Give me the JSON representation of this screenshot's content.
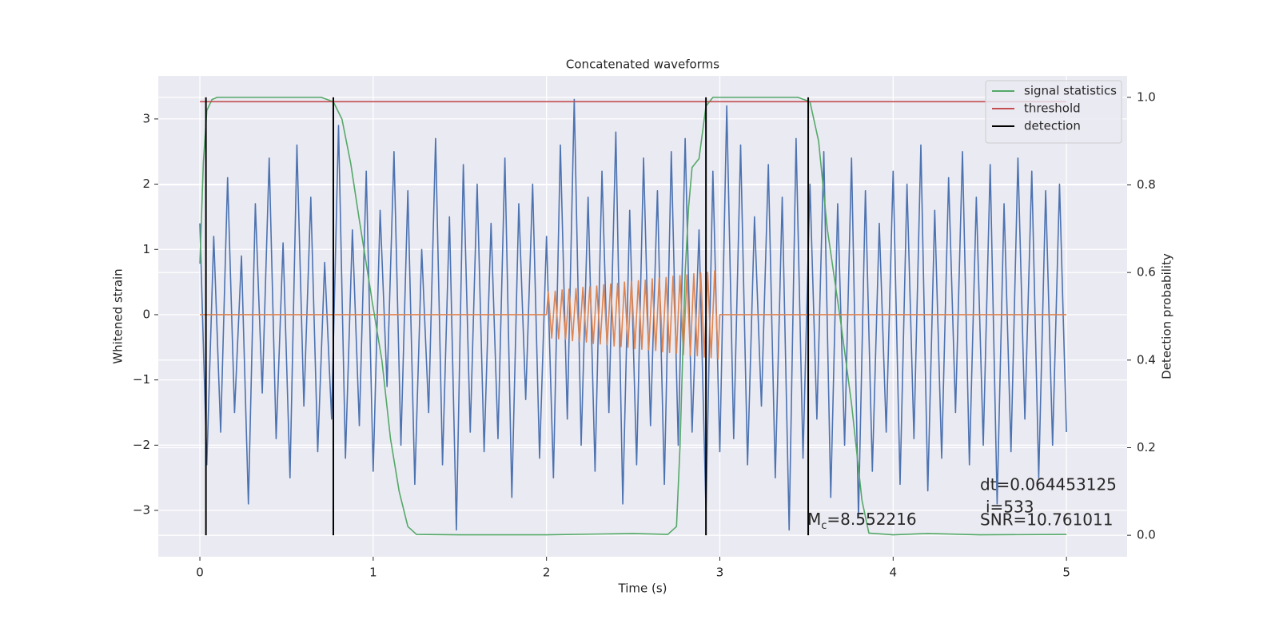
{
  "chart_data": {
    "type": "line",
    "title": "Concatenated waveforms",
    "xlabel": "Time (s)",
    "ylabel": "Whitened strain",
    "y2label": "Detection probability",
    "xlim": [
      -0.24,
      5.35
    ],
    "ylim": [
      -3.71,
      3.66
    ],
    "y2lim": [
      -0.049,
      1.049
    ],
    "xticks": [
      0,
      1,
      2,
      3,
      4,
      5
    ],
    "yticks": [
      {
        "value": -3,
        "label": "−3"
      },
      {
        "value": -2,
        "label": "−2"
      },
      {
        "value": -1,
        "label": "−1"
      },
      0,
      1,
      2,
      3
    ],
    "y2ticks": [
      {
        "value": 0,
        "label": "0.0"
      },
      0.2,
      0.4,
      0.6,
      0.8,
      {
        "value": 1,
        "label": "1.0"
      }
    ],
    "grid": true,
    "legend": "upper right",
    "series": [
      {
        "color": "#4c72b0",
        "axis": "y",
        "x": [
          0,
          0.04,
          0.08,
          0.12,
          0.16,
          0.2,
          0.24,
          0.28,
          0.32,
          0.36,
          0.4,
          0.44,
          0.48,
          0.52,
          0.56,
          0.6,
          0.64,
          0.68,
          0.72,
          0.76,
          0.8,
          0.84,
          0.88,
          0.92,
          0.96,
          1.0,
          1.04,
          1.08,
          1.12,
          1.16,
          1.2,
          1.24,
          1.28,
          1.32,
          1.36,
          1.4,
          1.44,
          1.48,
          1.52,
          1.56,
          1.6,
          1.64,
          1.68,
          1.72,
          1.76,
          1.8,
          1.84,
          1.88,
          1.92,
          1.96,
          2.0,
          2.04,
          2.08,
          2.12,
          2.16,
          2.2,
          2.24,
          2.28,
          2.32,
          2.36,
          2.4,
          2.44,
          2.48,
          2.52,
          2.56,
          2.6,
          2.64,
          2.68,
          2.72,
          2.76,
          2.8,
          2.84,
          2.88,
          2.92,
          2.96,
          3.0,
          3.04,
          3.08,
          3.12,
          3.16,
          3.2,
          3.24,
          3.28,
          3.32,
          3.36,
          3.4,
          3.44,
          3.48,
          3.52,
          3.56,
          3.6,
          3.64,
          3.68,
          3.72,
          3.76,
          3.8,
          3.84,
          3.88,
          3.92,
          3.96,
          4.0,
          4.04,
          4.08,
          4.12,
          4.16,
          4.2,
          4.24,
          4.28,
          4.32,
          4.36,
          4.4,
          4.44,
          4.48,
          4.52,
          4.56,
          4.6,
          4.64,
          4.68,
          4.72,
          4.76,
          4.8,
          4.84,
          4.88,
          4.92,
          4.96,
          5.0
        ],
        "values": [
          1.4,
          -2.3,
          1.2,
          -1.8,
          2.1,
          -1.5,
          0.9,
          -2.9,
          1.7,
          -1.2,
          2.4,
          -1.9,
          1.1,
          -2.5,
          2.6,
          -1.4,
          1.8,
          -2.1,
          0.8,
          -1.6,
          2.9,
          -2.2,
          1.3,
          -1.7,
          2.2,
          -2.4,
          1.6,
          -1.1,
          2.5,
          -2.0,
          1.9,
          -2.6,
          1.0,
          -1.5,
          2.7,
          -2.3,
          1.5,
          -3.3,
          2.3,
          -1.8,
          2.0,
          -2.1,
          1.4,
          -1.9,
          2.4,
          -2.8,
          1.7,
          -1.3,
          2.0,
          -2.2,
          1.2,
          -2.5,
          2.6,
          -1.6,
          3.3,
          -2.0,
          1.8,
          -2.4,
          2.2,
          -1.5,
          2.8,
          -2.9,
          1.6,
          -2.3,
          2.4,
          -1.7,
          1.9,
          -2.6,
          2.5,
          -2.0,
          2.7,
          -1.8,
          1.3,
          -3.0,
          2.2,
          -2.1,
          3.2,
          -1.9,
          2.6,
          -2.3,
          1.5,
          -1.4,
          2.3,
          -2.5,
          1.8,
          -3.3,
          2.7,
          -2.2,
          2.0,
          -1.6,
          2.5,
          -2.8,
          1.7,
          -2.0,
          2.4,
          -3.1,
          1.9,
          -2.4,
          1.4,
          -1.8,
          2.2,
          -2.6,
          2.0,
          -1.9,
          2.6,
          -2.7,
          1.6,
          -2.2,
          2.1,
          -1.5,
          2.5,
          -2.3,
          1.8,
          -2.0,
          2.3,
          -2.9,
          1.7,
          -2.1,
          2.4,
          -1.6,
          2.2,
          -2.5,
          1.9,
          -2.0,
          2.0,
          -1.8
        ]
      },
      {
        "color": "#dd8452",
        "axis": "y",
        "x": [
          0,
          2.0,
          2.01,
          2.03,
          2.05,
          2.07,
          2.09,
          2.11,
          2.13,
          2.15,
          2.17,
          2.19,
          2.21,
          2.23,
          2.25,
          2.27,
          2.29,
          2.31,
          2.33,
          2.35,
          2.37,
          2.39,
          2.41,
          2.43,
          2.45,
          2.47,
          2.49,
          2.51,
          2.53,
          2.55,
          2.57,
          2.59,
          2.61,
          2.63,
          2.65,
          2.67,
          2.69,
          2.71,
          2.73,
          2.75,
          2.77,
          2.79,
          2.81,
          2.83,
          2.85,
          2.87,
          2.89,
          2.91,
          2.93,
          2.95,
          2.97,
          2.99,
          3.0,
          5.0
        ],
        "values": [
          0,
          0,
          0.35,
          -0.36,
          0.36,
          -0.37,
          0.38,
          -0.38,
          0.39,
          -0.4,
          0.4,
          -0.41,
          0.42,
          -0.42,
          0.43,
          -0.44,
          0.44,
          -0.45,
          0.46,
          -0.46,
          0.47,
          -0.48,
          0.48,
          -0.49,
          0.5,
          -0.5,
          0.51,
          -0.52,
          0.52,
          -0.53,
          0.53,
          -0.54,
          0.55,
          -0.55,
          0.56,
          -0.57,
          0.57,
          -0.58,
          0.59,
          -0.59,
          0.6,
          -0.61,
          0.61,
          -0.62,
          0.63,
          -0.63,
          0.64,
          -0.65,
          0.65,
          -0.66,
          0.67,
          -0.68,
          0,
          0
        ]
      },
      {
        "name": "signal statistics",
        "color": "#55a868",
        "axis": "y2",
        "x": [
          0,
          0.02,
          0.04,
          0.07,
          0.1,
          0.7,
          0.77,
          0.82,
          0.87,
          0.92,
          1.0,
          1.05,
          1.1,
          1.15,
          1.2,
          1.25,
          1.5,
          2.0,
          2.5,
          2.7,
          2.75,
          2.77,
          2.8,
          2.82,
          2.84,
          2.88,
          2.92,
          2.96,
          3.45,
          3.52,
          3.57,
          3.62,
          3.7,
          3.76,
          3.82,
          3.86,
          4.0,
          4.2,
          4.5,
          5.0
        ],
        "values": [
          0.62,
          0.85,
          0.97,
          0.995,
          1.0,
          1.0,
          0.99,
          0.95,
          0.85,
          0.72,
          0.52,
          0.4,
          0.22,
          0.1,
          0.02,
          0.002,
          0.001,
          0.001,
          0.004,
          0.002,
          0.02,
          0.2,
          0.6,
          0.75,
          0.84,
          0.86,
          0.98,
          1.0,
          1.0,
          0.99,
          0.9,
          0.7,
          0.48,
          0.3,
          0.08,
          0.005,
          0.001,
          0.004,
          0.001,
          0.002
        ]
      },
      {
        "name": "threshold",
        "color": "#c44e52",
        "axis": "y2",
        "x": [
          0,
          5
        ],
        "values": [
          0.99,
          0.99
        ]
      }
    ],
    "vlines": {
      "name": "detection",
      "color": "#000000",
      "x": [
        0.035,
        0.77,
        2.92,
        3.51
      ],
      "ymin": 0,
      "ymax": 1
    },
    "annotations": [
      {
        "text": "dt=0.064453125"
      },
      {
        "text": "i=533"
      },
      {
        "text": "SNR=10.761011"
      },
      {
        "base": "M",
        "sub": "c",
        "text": "=8.552216"
      }
    ]
  }
}
